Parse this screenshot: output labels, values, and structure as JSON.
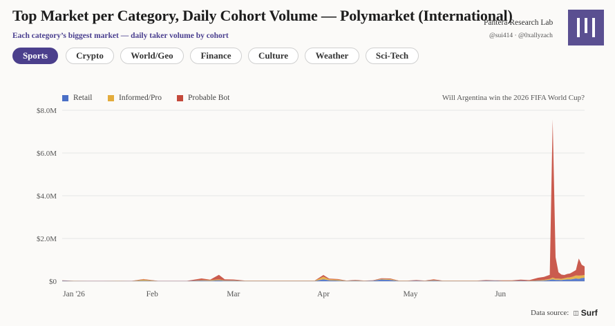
{
  "header": {
    "title": "Top Market per Category, Daily Cohort Volume — Polymarket (International)",
    "subtitle": "Each category’s biggest market — daily taker volume by cohort",
    "org": "Pantera Research Lab",
    "handles": "@sui414 · @0xallyzach"
  },
  "tabs": [
    {
      "label": "Sports",
      "active": true
    },
    {
      "label": "Crypto",
      "active": false
    },
    {
      "label": "World/Geo",
      "active": false
    },
    {
      "label": "Finance",
      "active": false
    },
    {
      "label": "Culture",
      "active": false
    },
    {
      "label": "Weather",
      "active": false
    },
    {
      "label": "Sci-Tech",
      "active": false
    }
  ],
  "market_question": "Will Argentina win the 2026 FIFA World Cup?",
  "footer": {
    "source_label": "Data source:",
    "brand": "Surf"
  },
  "colors": {
    "accent": "#4b3f8c",
    "retail": "#4a6fc6",
    "informed": "#e3ac3c",
    "bot": "#c4493b"
  },
  "chart_data": {
    "type": "area",
    "stacked": true,
    "title": "",
    "xlabel": "",
    "ylabel": "",
    "x_ticks": [
      "Jan '26",
      "Feb",
      "Mar",
      "Apr",
      "May",
      "Jun"
    ],
    "y_ticks": [
      "$0",
      "$2.0M",
      "$4.0M",
      "$6.0M",
      "$8.0M"
    ],
    "ylim": [
      0,
      8000000
    ],
    "x_range": [
      "2026-01-01",
      "2026-06-30"
    ],
    "grid": true,
    "legend_position": "top-left",
    "x": [
      "2026-01-01",
      "2026-01-05",
      "2026-01-10",
      "2026-01-15",
      "2026-01-20",
      "2026-01-25",
      "2026-01-29",
      "2026-02-03",
      "2026-02-08",
      "2026-02-13",
      "2026-02-18",
      "2026-02-21",
      "2026-02-24",
      "2026-02-26",
      "2026-03-01",
      "2026-03-05",
      "2026-03-10",
      "2026-03-15",
      "2026-03-20",
      "2026-03-25",
      "2026-03-29",
      "2026-04-01",
      "2026-04-03",
      "2026-04-06",
      "2026-04-09",
      "2026-04-12",
      "2026-04-15",
      "2026-04-18",
      "2026-04-21",
      "2026-04-24",
      "2026-04-27",
      "2026-04-30",
      "2026-05-03",
      "2026-05-06",
      "2026-05-09",
      "2026-05-12",
      "2026-05-15",
      "2026-05-18",
      "2026-05-21",
      "2026-05-24",
      "2026-05-27",
      "2026-05-30",
      "2026-06-02",
      "2026-06-05",
      "2026-06-08",
      "2026-06-11",
      "2026-06-14",
      "2026-06-16",
      "2026-06-18",
      "2026-06-19",
      "2026-06-20",
      "2026-06-21",
      "2026-06-22",
      "2026-06-23",
      "2026-06-24",
      "2026-06-25",
      "2026-06-26",
      "2026-06-27",
      "2026-06-28",
      "2026-06-29",
      "2026-06-30"
    ],
    "series": [
      {
        "name": "Retail",
        "values": [
          20000,
          10000,
          5000,
          5000,
          10000,
          5000,
          20000,
          5000,
          5000,
          5000,
          30000,
          20000,
          40000,
          20000,
          20000,
          10000,
          10000,
          10000,
          10000,
          10000,
          10000,
          90000,
          40000,
          30000,
          10000,
          20000,
          10000,
          20000,
          80000,
          60000,
          10000,
          10000,
          20000,
          10000,
          30000,
          10000,
          10000,
          10000,
          10000,
          10000,
          20000,
          20000,
          10000,
          10000,
          20000,
          10000,
          20000,
          30000,
          60000,
          90000,
          60000,
          60000,
          50000,
          70000,
          80000,
          80000,
          100000,
          130000,
          110000,
          150000,
          160000
        ]
      },
      {
        "name": "Informed/Pro",
        "values": [
          10000,
          5000,
          5000,
          5000,
          5000,
          5000,
          60000,
          5000,
          5000,
          5000,
          20000,
          30000,
          40000,
          20000,
          20000,
          10000,
          10000,
          10000,
          10000,
          10000,
          10000,
          120000,
          50000,
          40000,
          10000,
          20000,
          10000,
          10000,
          30000,
          40000,
          10000,
          10000,
          10000,
          10000,
          20000,
          10000,
          10000,
          10000,
          10000,
          10000,
          10000,
          10000,
          10000,
          10000,
          10000,
          10000,
          20000,
          30000,
          50000,
          80000,
          60000,
          60000,
          60000,
          70000,
          90000,
          100000,
          120000,
          140000,
          150000,
          120000,
          130000
        ]
      },
      {
        "name": "Probable Bot",
        "values": [
          10000,
          5000,
          5000,
          5000,
          5000,
          5000,
          20000,
          5000,
          5000,
          5000,
          80000,
          20000,
          220000,
          50000,
          40000,
          10000,
          10000,
          10000,
          10000,
          10000,
          10000,
          80000,
          30000,
          30000,
          10000,
          20000,
          10000,
          10000,
          30000,
          30000,
          10000,
          10000,
          20000,
          10000,
          40000,
          10000,
          10000,
          10000,
          10000,
          10000,
          20000,
          10000,
          20000,
          20000,
          40000,
          30000,
          120000,
          140000,
          190000,
          7400000,
          1000000,
          300000,
          200000,
          150000,
          170000,
          180000,
          220000,
          250000,
          800000,
          500000,
          400000
        ]
      }
    ]
  }
}
